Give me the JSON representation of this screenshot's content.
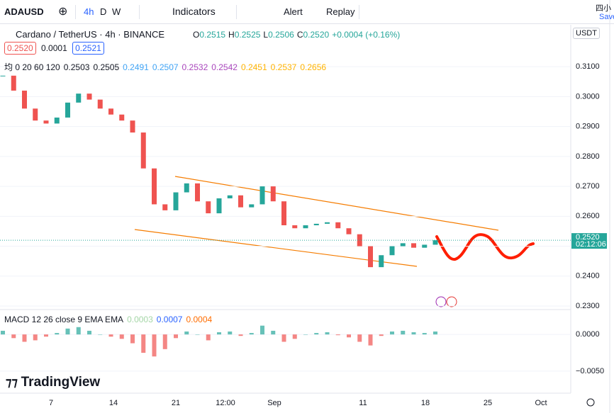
{
  "toolbar": {
    "symbol": "ADAUSD",
    "intervals": [
      "4h",
      "D",
      "W"
    ],
    "indicators": "Indicators",
    "alert": "Alert",
    "replay": "Replay",
    "corner": "四小",
    "save": "Save"
  },
  "legend": {
    "title": "Cardano / TetherUS · 4h · BINANCE",
    "ohlc": [
      {
        "key": "O",
        "value": "0.2515"
      },
      {
        "key": "H",
        "value": "0.2525"
      },
      {
        "key": "L",
        "value": "0.2506"
      },
      {
        "key": "C",
        "value": "0.2520"
      }
    ],
    "change": "+0.0004 (+0.16%)",
    "bid": "0.2520",
    "spread": "0.0001",
    "ask": "0.2521",
    "ma_title": "均 0 20 60 120",
    "ma_values": [
      {
        "text": "0.2503",
        "color": "#131722"
      },
      {
        "text": "0.2505",
        "color": "#131722"
      },
      {
        "text": "0.2491",
        "color": "#42a5f5"
      },
      {
        "text": "0.2507",
        "color": "#42a5f5"
      },
      {
        "text": "0.2532",
        "color": "#ab47bc"
      },
      {
        "text": "0.2542",
        "color": "#ab47bc"
      },
      {
        "text": "0.2451",
        "color": "#ffb300"
      },
      {
        "text": "0.2537",
        "color": "#ffb300"
      },
      {
        "text": "0.2656",
        "color": "#ffb300"
      }
    ],
    "currency": "USDT",
    "countdown": "02:12:06",
    "macd_title": "MACD 12 26 close 9 EMA EMA",
    "macd_values": [
      {
        "text": "0.0003",
        "color": "#a5d6a7"
      },
      {
        "text": "0.0007",
        "color": "#2962ff"
      },
      {
        "text": "0.0004",
        "color": "#ff6d00"
      }
    ],
    "logo": "TradingView"
  },
  "x_axis": [
    "7",
    "14",
    "21",
    "12:00",
    "Sep",
    "11",
    "18",
    "25",
    "Oct"
  ],
  "chart_data": [
    {
      "type": "candlestick",
      "up_color": "#26a69a",
      "down_color": "#ef5350",
      "values": [
        0.307,
        0.302,
        0.296,
        0.292,
        0.291,
        0.293,
        0.298,
        0.301,
        0.299,
        0.296,
        0.294,
        0.292,
        0.288,
        0.276,
        0.264,
        0.262,
        0.268,
        0.271,
        0.265,
        0.261,
        0.266,
        0.267,
        0.263,
        0.264,
        0.27,
        0.265,
        0.257,
        0.256,
        0.257,
        0.2575,
        0.258,
        0.256,
        0.254,
        0.25,
        0.243,
        0.247,
        0.25,
        0.251,
        0.2495,
        0.2505,
        0.252
      ],
      "last_price_label": "0.2520",
      "ylim": [
        0.2293,
        0.324
      ],
      "yticks": [
        {
          "value": 0.31,
          "label": "0.3100"
        },
        {
          "value": 0.3,
          "label": "0.3000"
        },
        {
          "value": 0.29,
          "label": "0.2900"
        },
        {
          "value": 0.28,
          "label": "0.2800"
        },
        {
          "value": 0.27,
          "label": "0.2700"
        },
        {
          "value": 0.26,
          "label": "0.2600"
        },
        {
          "value": 0.25,
          "label": "0.2500"
        },
        {
          "value": 0.24,
          "label": "0.2400"
        },
        {
          "value": 0.23,
          "label": "0.2300"
        }
      ]
    },
    {
      "type": "bar",
      "up_color": "#26a69a",
      "down_color": "#ef5350",
      "values": [
        0.0005,
        -0.0005,
        -0.001,
        -0.0008,
        -0.0003,
        0.0002,
        0.0008,
        0.001,
        0.0005,
        0,
        -0.0003,
        -0.0006,
        -0.0012,
        -0.0025,
        -0.003,
        -0.002,
        -0.0005,
        0.0004,
        0,
        -0.0008,
        0.0003,
        0.0004,
        -0.0002,
        0.0002,
        0.0012,
        0.0005,
        -0.001,
        -0.0006,
        0,
        0.0002,
        0.0003,
        -0.0001,
        -0.0004,
        -0.001,
        -0.0015,
        -0.0002,
        0.0004,
        0.0005,
        0.0003,
        0.0002,
        0.0004
      ],
      "ylim": [
        -0.008,
        0.0031
      ],
      "yticks": [
        {
          "value": 0,
          "label": "0.0000"
        },
        {
          "value": -0.005,
          "label": "−0.0050"
        }
      ]
    }
  ]
}
